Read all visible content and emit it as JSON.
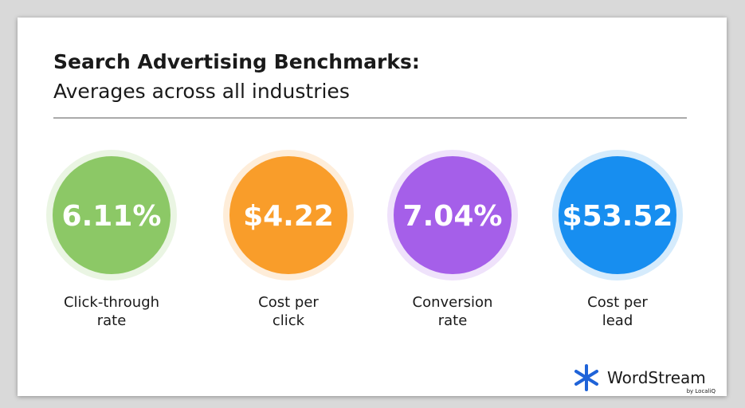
{
  "header": {
    "title": "Search Advertising Benchmarks:",
    "subtitle": "Averages across all industries"
  },
  "metrics": [
    {
      "value": "6.11%",
      "label": [
        "Click-through",
        "rate"
      ],
      "color": "#8cc866"
    },
    {
      "value": "$4.22",
      "label": [
        "Cost per",
        "click"
      ],
      "color": "#f99d2a"
    },
    {
      "value": "7.04%",
      "label": [
        "Conversion",
        "rate"
      ],
      "color": "#a55fe9"
    },
    {
      "value": "$53.52",
      "label": [
        "Cost per",
        "lead"
      ],
      "color": "#178ef0"
    }
  ],
  "logo": {
    "name": "WordStream",
    "tagline": "by LocaliQ"
  }
}
